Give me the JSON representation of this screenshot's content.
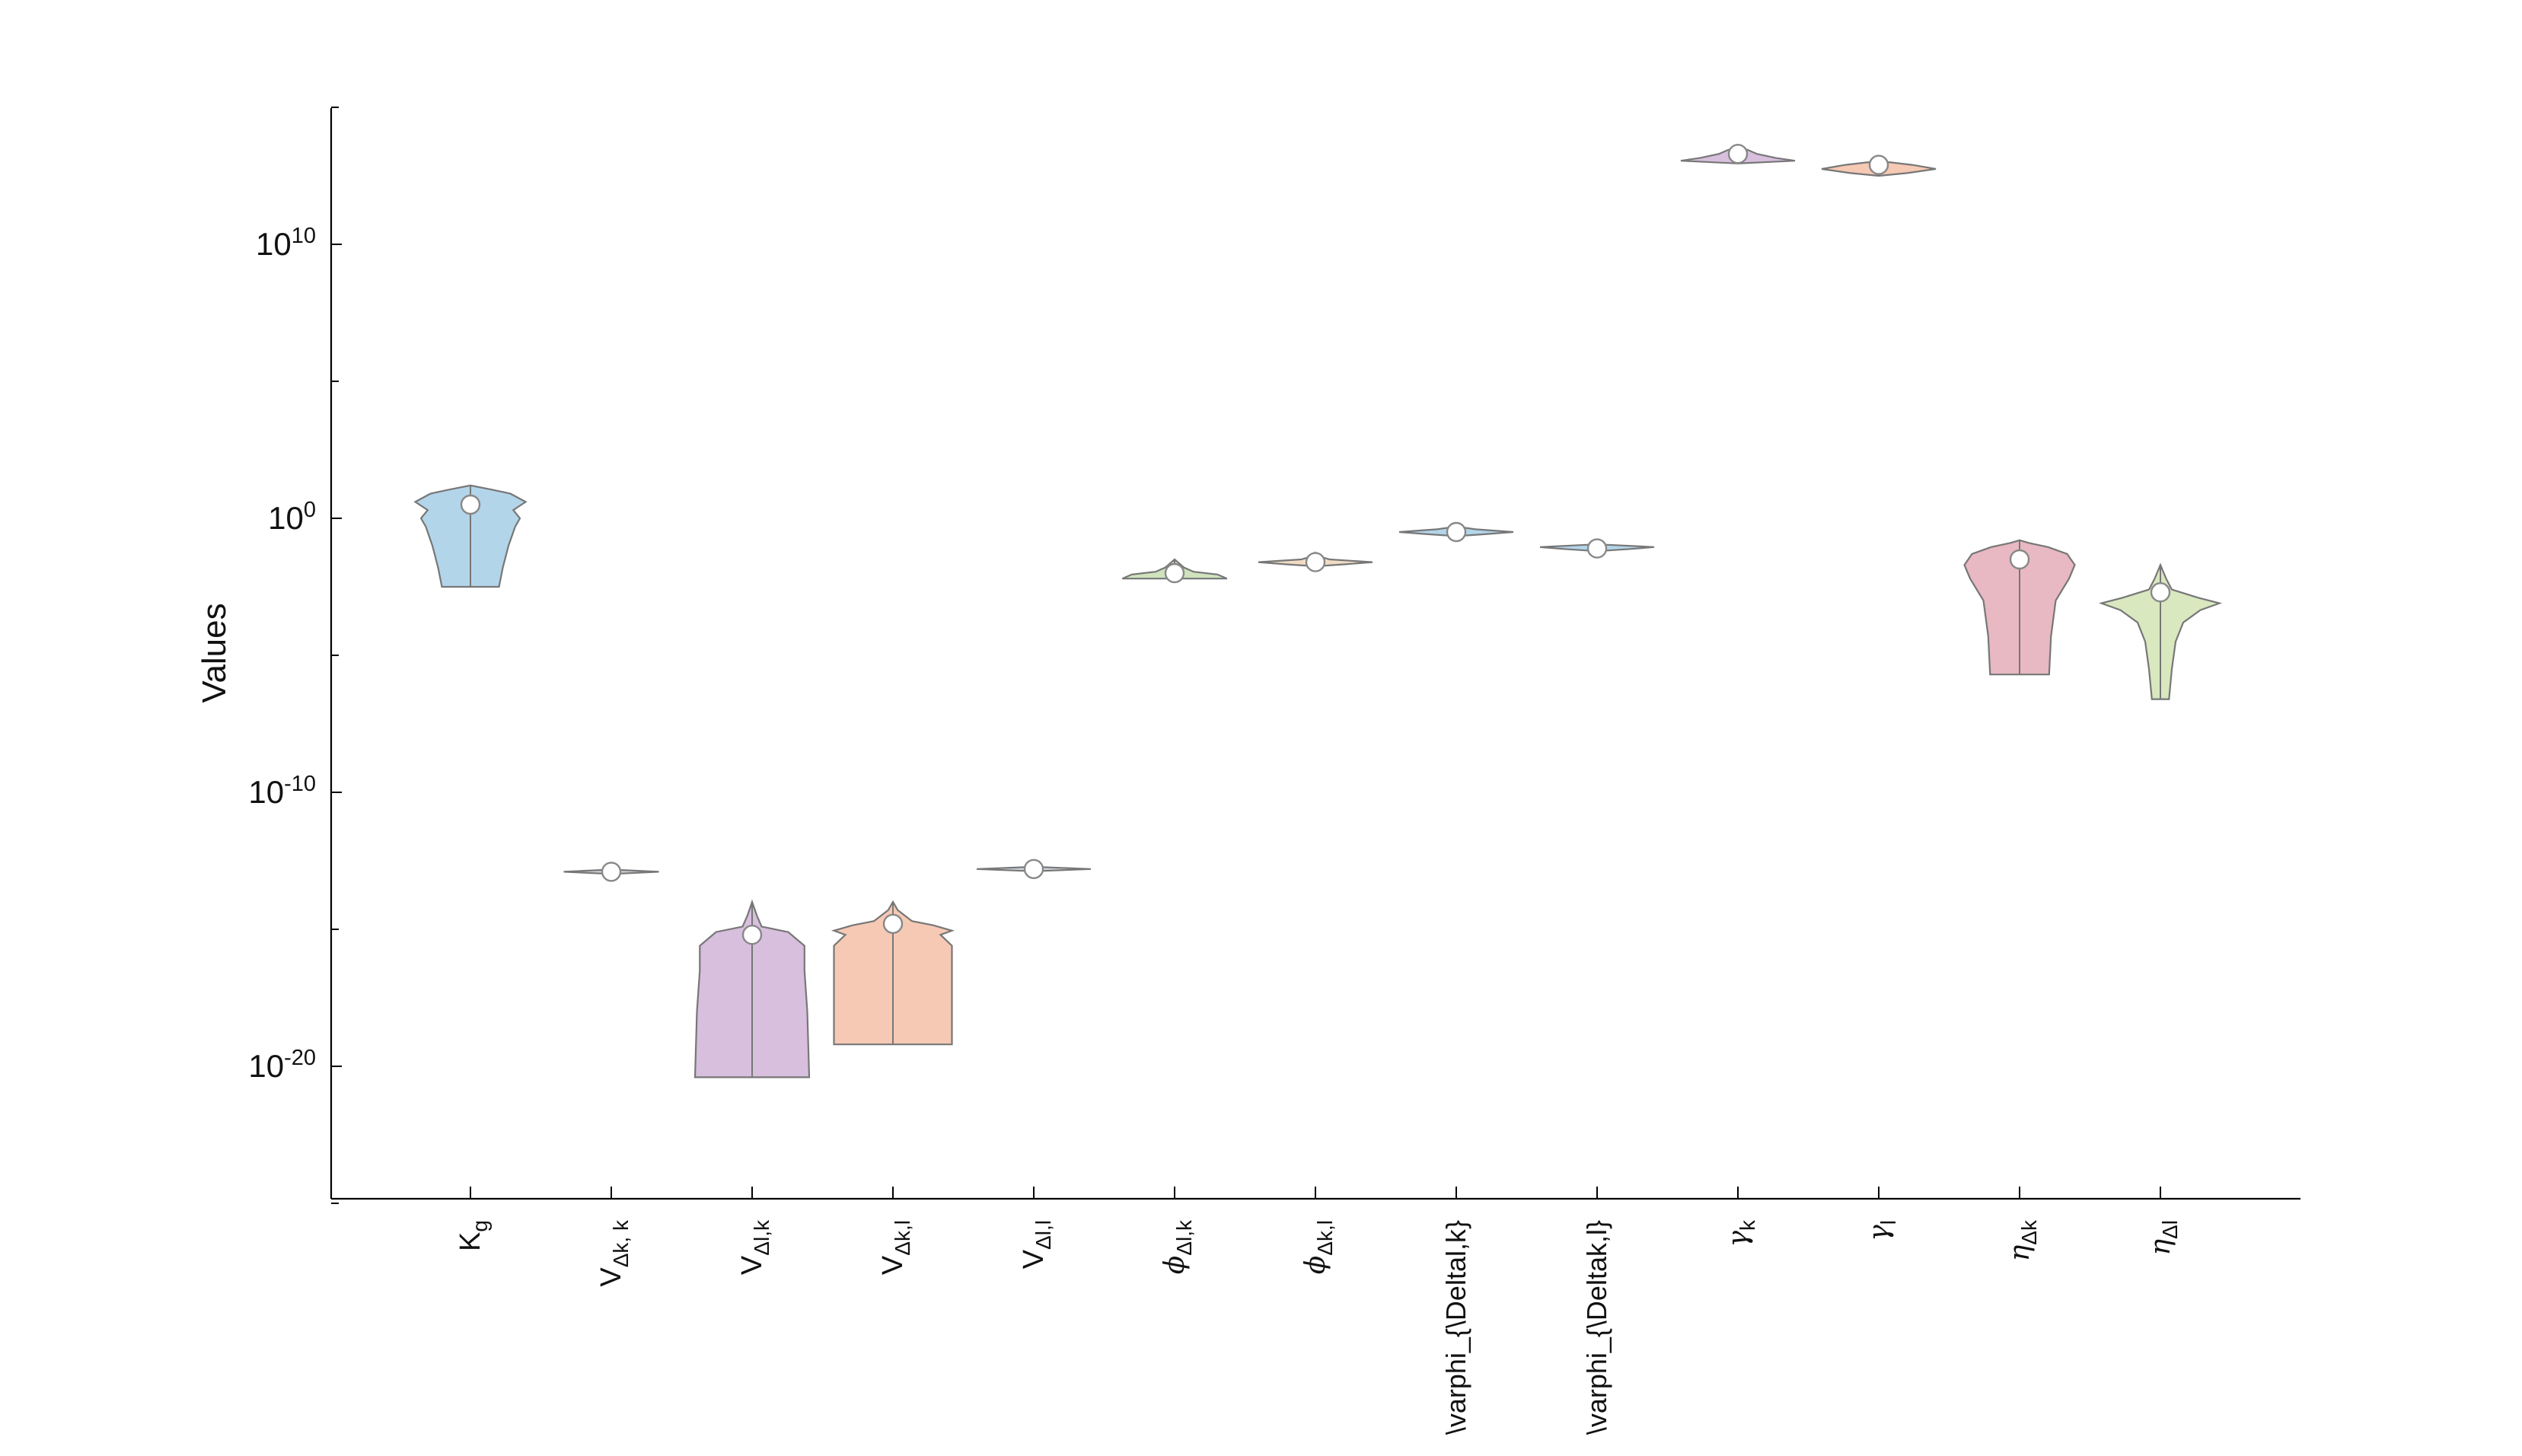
{
  "chart_data": {
    "type": "violin",
    "ylabel": "Values",
    "yscale": "log",
    "ylim_exponent": [
      -25,
      15
    ],
    "y_ticks": [
      {
        "exp": 10,
        "label_base": "10",
        "label_exp": "10"
      },
      {
        "exp": 0,
        "label_base": "10",
        "label_exp": "0"
      },
      {
        "exp": -10,
        "label_base": "10",
        "label_exp": "-10"
      },
      {
        "exp": -20,
        "label_base": "10",
        "label_exp": "-20"
      }
    ],
    "y_minor_tick_exponents": [
      15,
      5,
      -5,
      -15,
      -25
    ],
    "categories": [
      {
        "label": "K",
        "sub": "g",
        "style": "normal"
      },
      {
        "label": "V",
        "sub": "Δk, k",
        "style": "normal"
      },
      {
        "label": "V",
        "sub": "Δl,k",
        "style": "normal"
      },
      {
        "label": "V",
        "sub": "Δk,l",
        "style": "normal"
      },
      {
        "label": "V",
        "sub": "Δl,l",
        "style": "normal"
      },
      {
        "label": "ϕ",
        "sub": "Δl,k",
        "style": "greek"
      },
      {
        "label": "ϕ",
        "sub": "Δk,l",
        "style": "greek"
      },
      {
        "label": "\\varphi_{\\Deltal,k}",
        "sub": "",
        "style": "raw"
      },
      {
        "label": "\\varphi_{\\Deltak,l}",
        "sub": "",
        "style": "raw"
      },
      {
        "label": "γ",
        "sub": "k",
        "style": "greek"
      },
      {
        "label": "γ",
        "sub": "l",
        "style": "greek"
      },
      {
        "label": "η",
        "sub": "Δk",
        "style": "greek"
      },
      {
        "label": "η",
        "sub": "Δl",
        "style": "greek"
      }
    ],
    "series": [
      {
        "name": "K_g",
        "color": "#b3d5ea",
        "median_exp": 0.5,
        "min_exp": -2.5,
        "max_exp": 1.2,
        "profile": [
          [
            -2.5,
            0.3
          ],
          [
            -1.8,
            0.34
          ],
          [
            -1.0,
            0.4
          ],
          [
            -0.3,
            0.47
          ],
          [
            0.0,
            0.52
          ],
          [
            0.3,
            0.45
          ],
          [
            0.6,
            0.58
          ],
          [
            0.9,
            0.42
          ],
          [
            1.05,
            0.22
          ],
          [
            1.2,
            0.0
          ]
        ]
      },
      {
        "name": "V_dk_k",
        "color": "#cfd6de",
        "median_exp": -12.9,
        "min_exp": -12.98,
        "max_exp": -12.82,
        "profile": [
          [
            -12.98,
            0.0
          ],
          [
            -12.9,
            0.5
          ],
          [
            -12.82,
            0.0
          ]
        ]
      },
      {
        "name": "V_dl_k",
        "color": "#d7bfdd",
        "median_exp": -15.2,
        "min_exp": -20.4,
        "max_exp": -14.0,
        "profile": [
          [
            -20.4,
            0.6
          ],
          [
            -18.0,
            0.58
          ],
          [
            -16.5,
            0.55
          ],
          [
            -15.6,
            0.55
          ],
          [
            -15.1,
            0.38
          ],
          [
            -14.9,
            0.1
          ],
          [
            -14.5,
            0.05
          ],
          [
            -14.0,
            0.0
          ]
        ]
      },
      {
        "name": "V_dk_l",
        "color": "#f6c9b4",
        "median_exp": -14.8,
        "min_exp": -19.2,
        "max_exp": -14.0,
        "profile": [
          [
            -19.2,
            0.62
          ],
          [
            -17.0,
            0.62
          ],
          [
            -15.6,
            0.62
          ],
          [
            -15.2,
            0.5
          ],
          [
            -15.05,
            0.62
          ],
          [
            -14.85,
            0.42
          ],
          [
            -14.7,
            0.2
          ],
          [
            -14.3,
            0.05
          ],
          [
            -14.0,
            0.0
          ]
        ]
      },
      {
        "name": "V_dl_l",
        "color": "#cfd6de",
        "median_exp": -12.8,
        "min_exp": -12.88,
        "max_exp": -12.72,
        "profile": [
          [
            -12.88,
            0.0
          ],
          [
            -12.8,
            0.6
          ],
          [
            -12.72,
            0.0
          ]
        ]
      },
      {
        "name": "phi_dl_k",
        "color": "#cfe3bd",
        "median_exp": -2.0,
        "min_exp": -2.2,
        "max_exp": -1.5,
        "profile": [
          [
            -2.2,
            0.55
          ],
          [
            -2.05,
            0.45
          ],
          [
            -1.95,
            0.2
          ],
          [
            -1.8,
            0.1
          ],
          [
            -1.65,
            0.05
          ],
          [
            -1.5,
            0.0
          ]
        ]
      },
      {
        "name": "phi_dk_l",
        "color": "#f2dcc4",
        "median_exp": -1.6,
        "min_exp": -1.75,
        "max_exp": -1.25,
        "profile": [
          [
            -1.75,
            0.0
          ],
          [
            -1.68,
            0.3
          ],
          [
            -1.6,
            0.6
          ],
          [
            -1.5,
            0.15
          ],
          [
            -1.4,
            0.05
          ],
          [
            -1.25,
            0.0
          ]
        ]
      },
      {
        "name": "varphi_dl_k",
        "color": "#b3d5ea",
        "median_exp": -0.5,
        "min_exp": -0.65,
        "max_exp": -0.3,
        "profile": [
          [
            -0.65,
            0.0
          ],
          [
            -0.58,
            0.3
          ],
          [
            -0.5,
            0.6
          ],
          [
            -0.4,
            0.2
          ],
          [
            -0.3,
            0.0
          ]
        ]
      },
      {
        "name": "varphi_dk_l",
        "color": "#b3d5ea",
        "median_exp": -1.1,
        "min_exp": -1.2,
        "max_exp": -0.95,
        "profile": [
          [
            -1.2,
            0.0
          ],
          [
            -1.12,
            0.35
          ],
          [
            -1.05,
            0.6
          ],
          [
            -0.98,
            0.2
          ],
          [
            -0.95,
            0.0
          ]
        ]
      },
      {
        "name": "gamma_k",
        "color": "#d7bfdd",
        "median_exp": 13.3,
        "min_exp": 12.95,
        "max_exp": 13.5,
        "profile": [
          [
            12.95,
            0.0
          ],
          [
            13.05,
            0.6
          ],
          [
            13.15,
            0.4
          ],
          [
            13.3,
            0.2
          ],
          [
            13.45,
            0.1
          ],
          [
            13.5,
            0.0
          ]
        ]
      },
      {
        "name": "gamma_l",
        "color": "#f6c9b4",
        "median_exp": 12.9,
        "min_exp": 12.5,
        "max_exp": 13.05,
        "profile": [
          [
            12.5,
            0.0
          ],
          [
            12.6,
            0.3
          ],
          [
            12.75,
            0.6
          ],
          [
            12.9,
            0.35
          ],
          [
            13.0,
            0.1
          ],
          [
            13.05,
            0.0
          ]
        ]
      },
      {
        "name": "eta_dk",
        "color": "#e8b8c3",
        "median_exp": -1.5,
        "min_exp": -5.7,
        "max_exp": -0.8,
        "profile": [
          [
            -5.7,
            0.31
          ],
          [
            -4.3,
            0.33
          ],
          [
            -3.0,
            0.38
          ],
          [
            -2.2,
            0.52
          ],
          [
            -1.7,
            0.58
          ],
          [
            -1.3,
            0.5
          ],
          [
            -1.05,
            0.3
          ],
          [
            -0.9,
            0.1
          ],
          [
            -0.8,
            0.0
          ]
        ]
      },
      {
        "name": "eta_dl",
        "color": "#d9e8bf",
        "median_exp": -2.7,
        "min_exp": -6.6,
        "max_exp": -1.7,
        "profile": [
          [
            -6.6,
            0.09
          ],
          [
            -5.5,
            0.12
          ],
          [
            -4.5,
            0.16
          ],
          [
            -3.8,
            0.24
          ],
          [
            -3.35,
            0.42
          ],
          [
            -3.1,
            0.62
          ],
          [
            -2.9,
            0.4
          ],
          [
            -2.6,
            0.12
          ],
          [
            -2.2,
            0.06
          ],
          [
            -1.7,
            0.0
          ]
        ]
      }
    ]
  }
}
